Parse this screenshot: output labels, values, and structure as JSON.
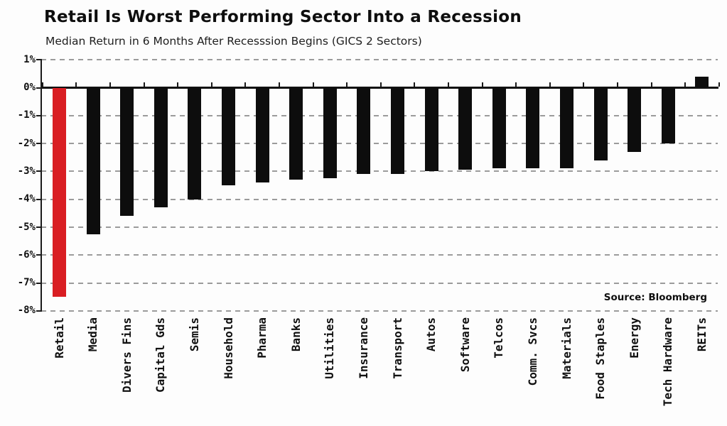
{
  "chart_data": {
    "type": "bar",
    "title": "Retail Is Worst Performing Sector Into a Recession",
    "subtitle": "Median Return in 6 Months After Recesssion Begins (GICS 2 Sectors)",
    "source": "Source: Bloomberg",
    "categories": [
      "Retail",
      "Media",
      "Divers Fins",
      "Capital Gds",
      "Semis",
      "Household",
      "Pharma",
      "Banks",
      "Utilities",
      "Insurance",
      "Transport",
      "Autos",
      "Software",
      "Telcos",
      "Comm. Svcs",
      "Materials",
      "Food Staples",
      "Energy",
      "Tech Hardware",
      "REITs"
    ],
    "values": [
      -7.5,
      -5.25,
      -4.6,
      -4.3,
      -4.0,
      -3.5,
      -3.4,
      -3.3,
      -3.25,
      -3.1,
      -3.1,
      -3.0,
      -2.95,
      -2.9,
      -2.9,
      -2.9,
      -2.6,
      -2.3,
      -2.0,
      0.4
    ],
    "value_unit": "%",
    "highlight_category": "Retail",
    "ylim": [
      -8,
      1
    ],
    "yticks": [
      1,
      0,
      -1,
      -2,
      -3,
      -4,
      -5,
      -6,
      -7,
      -8
    ],
    "ytick_labels": [
      "1%",
      "0%",
      "-1%",
      "-2%",
      "-3%",
      "-4%",
      "-5%",
      "-6%",
      "-7%",
      "-8%"
    ],
    "grid": "horizontal-dashed",
    "zero_line": true,
    "legend": "none",
    "colors": {
      "bar": "#0d0d0d",
      "highlight": "#d91e23",
      "grid": "#9b9b9b",
      "axis": "#1a1a1a"
    }
  }
}
